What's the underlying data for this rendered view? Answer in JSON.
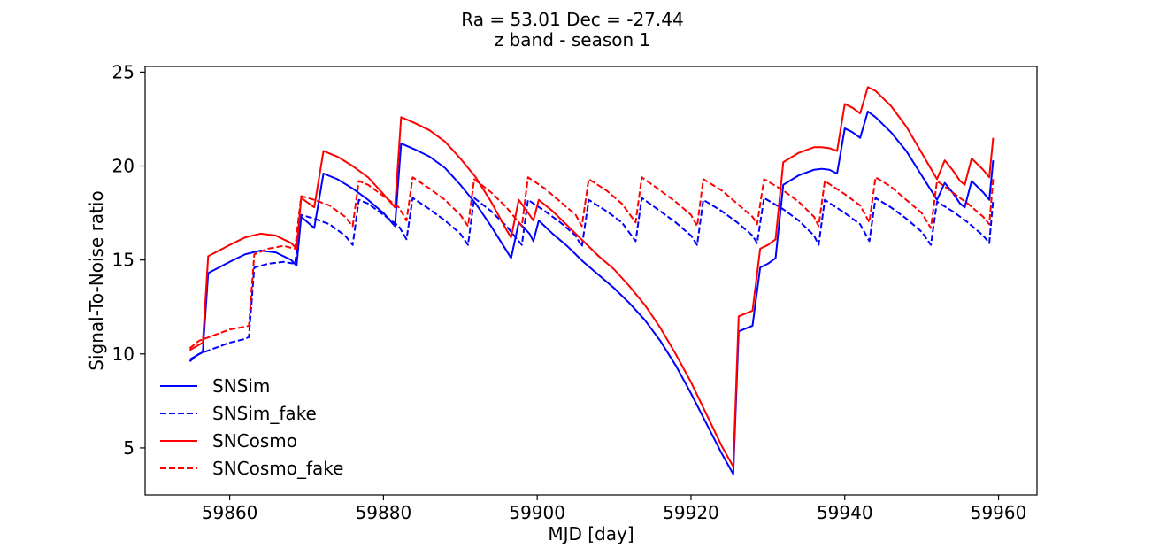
{
  "chart_data": {
    "type": "line",
    "title": "Ra = 53.01 Dec = -27.44",
    "subtitle": "z band - season 1",
    "xlabel": "MJD [day]",
    "ylabel": "Signal-To-Noise ratio",
    "xlim": [
      59849,
      59965
    ],
    "ylim": [
      2.5,
      25.3
    ],
    "xticks": [
      59860,
      59880,
      59900,
      59920,
      59940,
      59960
    ],
    "yticks": [
      5,
      10,
      15,
      20,
      25
    ],
    "grid": false,
    "legend_position": "lower-left",
    "series": [
      {
        "name": "SNSim",
        "color": "#0000ff",
        "dash": "solid",
        "points": [
          [
            59854.8,
            9.7
          ],
          [
            59856.5,
            10.1
          ],
          [
            59857.2,
            14.3
          ],
          [
            59860,
            14.9
          ],
          [
            59862,
            15.3
          ],
          [
            59864,
            15.5
          ],
          [
            59866,
            15.4
          ],
          [
            59868,
            15.0
          ],
          [
            59868.7,
            14.7
          ],
          [
            59869.3,
            17.3
          ],
          [
            59871,
            16.7
          ],
          [
            59872.2,
            19.6
          ],
          [
            59874,
            19.3
          ],
          [
            59876,
            18.8
          ],
          [
            59878,
            18.2
          ],
          [
            59880,
            17.5
          ],
          [
            59881.5,
            16.8
          ],
          [
            59882.3,
            21.2
          ],
          [
            59884,
            20.9
          ],
          [
            59886,
            20.5
          ],
          [
            59888,
            19.9
          ],
          [
            59890,
            19.0
          ],
          [
            59892,
            18.0
          ],
          [
            59894,
            16.8
          ],
          [
            59896,
            15.5
          ],
          [
            59896.6,
            15.1
          ],
          [
            59897.6,
            17.0
          ],
          [
            59899,
            16.4
          ],
          [
            59899.5,
            16.0
          ],
          [
            59900.2,
            17.1
          ],
          [
            59902,
            16.4
          ],
          [
            59904,
            15.7
          ],
          [
            59906,
            14.9
          ],
          [
            59908,
            14.2
          ],
          [
            59910,
            13.5
          ],
          [
            59912,
            12.7
          ],
          [
            59914,
            11.8
          ],
          [
            59916,
            10.7
          ],
          [
            59918,
            9.4
          ],
          [
            59920,
            7.9
          ],
          [
            59922,
            6.3
          ],
          [
            59924,
            4.7
          ],
          [
            59925.5,
            3.6
          ],
          [
            59926.2,
            11.2
          ],
          [
            59928,
            11.5
          ],
          [
            59929,
            14.6
          ],
          [
            59930,
            14.8
          ],
          [
            59931,
            15.1
          ],
          [
            59932,
            19.0
          ],
          [
            59934,
            19.5
          ],
          [
            59936,
            19.8
          ],
          [
            59937,
            19.85
          ],
          [
            59938,
            19.8
          ],
          [
            59939,
            19.6
          ],
          [
            59940,
            22.0
          ],
          [
            59941,
            21.8
          ],
          [
            59942,
            21.5
          ],
          [
            59943,
            22.9
          ],
          [
            59944,
            22.6
          ],
          [
            59946,
            21.8
          ],
          [
            59948,
            20.8
          ],
          [
            59950,
            19.5
          ],
          [
            59952,
            18.2
          ],
          [
            59953,
            19.1
          ],
          [
            59954,
            18.6
          ],
          [
            59955,
            18.0
          ],
          [
            59955.6,
            17.8
          ],
          [
            59956.5,
            19.2
          ],
          [
            59958,
            18.6
          ],
          [
            59958.8,
            18.2
          ],
          [
            59959.3,
            20.3
          ]
        ]
      },
      {
        "name": "SNSim_fake",
        "color": "#0000ff",
        "dash": "dashed",
        "points": [
          [
            59854.8,
            9.6
          ],
          [
            59856,
            10.0
          ],
          [
            59858,
            10.3
          ],
          [
            59860,
            10.6
          ],
          [
            59862,
            10.8
          ],
          [
            59862.5,
            10.9
          ],
          [
            59863.2,
            14.6
          ],
          [
            59865,
            14.8
          ],
          [
            59867,
            14.9
          ],
          [
            59868.5,
            14.8
          ],
          [
            59869.3,
            17.4
          ],
          [
            59871,
            17.2
          ],
          [
            59873,
            16.9
          ],
          [
            59875,
            16.3
          ],
          [
            59876,
            15.8
          ],
          [
            59876.8,
            18.2
          ],
          [
            59878,
            18.0
          ],
          [
            59880,
            17.4
          ],
          [
            59882,
            16.8
          ],
          [
            59883,
            16.1
          ],
          [
            59883.8,
            18.3
          ],
          [
            59886,
            17.7
          ],
          [
            59888,
            17.1
          ],
          [
            59890,
            16.4
          ],
          [
            59891,
            15.8
          ],
          [
            59891.8,
            18.3
          ],
          [
            59894,
            17.6
          ],
          [
            59896,
            16.8
          ],
          [
            59898,
            15.8
          ],
          [
            59898.8,
            18.2
          ],
          [
            59901,
            17.6
          ],
          [
            59903,
            17.0
          ],
          [
            59905,
            16.3
          ],
          [
            59905.8,
            15.7
          ],
          [
            59906.7,
            18.2
          ],
          [
            59909,
            17.6
          ],
          [
            59911,
            17.0
          ],
          [
            59912.8,
            16.0
          ],
          [
            59913.6,
            18.3
          ],
          [
            59916,
            17.6
          ],
          [
            59918,
            17.0
          ],
          [
            59920,
            16.3
          ],
          [
            59920.8,
            15.8
          ],
          [
            59921.6,
            18.2
          ],
          [
            59924,
            17.6
          ],
          [
            59926,
            17.0
          ],
          [
            59928,
            16.3
          ],
          [
            59928.6,
            15.9
          ],
          [
            59929.5,
            18.3
          ],
          [
            59932,
            17.7
          ],
          [
            59934,
            17.1
          ],
          [
            59936,
            16.3
          ],
          [
            59936.6,
            15.8
          ],
          [
            59937.4,
            18.2
          ],
          [
            59940,
            17.5
          ],
          [
            59942,
            16.9
          ],
          [
            59943.2,
            16.0
          ],
          [
            59944,
            18.3
          ],
          [
            59946,
            17.8
          ],
          [
            59948,
            17.2
          ],
          [
            59950,
            16.5
          ],
          [
            59951.2,
            15.8
          ],
          [
            59952,
            18.1
          ],
          [
            59954,
            17.6
          ],
          [
            59956,
            17.0
          ],
          [
            59958,
            16.3
          ],
          [
            59958.8,
            15.9
          ],
          [
            59959.3,
            18.2
          ]
        ]
      },
      {
        "name": "SNCosmo",
        "color": "#ff0000",
        "dash": "solid",
        "points": [
          [
            59854.8,
            10.2
          ],
          [
            59856.5,
            10.6
          ],
          [
            59857.2,
            15.2
          ],
          [
            59860,
            15.8
          ],
          [
            59862,
            16.2
          ],
          [
            59864,
            16.4
          ],
          [
            59866,
            16.3
          ],
          [
            59868,
            15.9
          ],
          [
            59868.7,
            15.6
          ],
          [
            59869.3,
            18.3
          ],
          [
            59871,
            17.8
          ],
          [
            59872.2,
            20.8
          ],
          [
            59874,
            20.5
          ],
          [
            59876,
            20.0
          ],
          [
            59878,
            19.4
          ],
          [
            59880,
            18.5
          ],
          [
            59881.5,
            17.8
          ],
          [
            59882.3,
            22.6
          ],
          [
            59884,
            22.3
          ],
          [
            59886,
            21.9
          ],
          [
            59888,
            21.3
          ],
          [
            59890,
            20.4
          ],
          [
            59892,
            19.4
          ],
          [
            59894,
            18.1
          ],
          [
            59896,
            16.6
          ],
          [
            59896.6,
            16.2
          ],
          [
            59897.6,
            18.2
          ],
          [
            59899,
            17.4
          ],
          [
            59899.5,
            17.1
          ],
          [
            59900.2,
            18.2
          ],
          [
            59902,
            17.6
          ],
          [
            59904,
            16.8
          ],
          [
            59906,
            16.0
          ],
          [
            59908,
            15.2
          ],
          [
            59910,
            14.5
          ],
          [
            59912,
            13.6
          ],
          [
            59914,
            12.6
          ],
          [
            59916,
            11.4
          ],
          [
            59918,
            10.0
          ],
          [
            59920,
            8.5
          ],
          [
            59922,
            6.8
          ],
          [
            59924,
            5.1
          ],
          [
            59925.5,
            4.0
          ],
          [
            59926.2,
            12.0
          ],
          [
            59928,
            12.3
          ],
          [
            59929,
            15.6
          ],
          [
            59930,
            15.8
          ],
          [
            59931,
            16.1
          ],
          [
            59932,
            20.2
          ],
          [
            59934,
            20.7
          ],
          [
            59936,
            21.0
          ],
          [
            59937,
            21.0
          ],
          [
            59938,
            20.95
          ],
          [
            59939,
            20.8
          ],
          [
            59940,
            23.3
          ],
          [
            59941,
            23.1
          ],
          [
            59942,
            22.8
          ],
          [
            59943,
            24.2
          ],
          [
            59944,
            24.0
          ],
          [
            59946,
            23.2
          ],
          [
            59948,
            22.1
          ],
          [
            59950,
            20.7
          ],
          [
            59952,
            19.3
          ],
          [
            59953,
            20.3
          ],
          [
            59954,
            19.8
          ],
          [
            59955,
            19.2
          ],
          [
            59955.6,
            19.0
          ],
          [
            59956.5,
            20.4
          ],
          [
            59958,
            19.8
          ],
          [
            59958.8,
            19.4
          ],
          [
            59959.3,
            21.5
          ]
        ]
      },
      {
        "name": "SNCosmo_fake",
        "color": "#ff0000",
        "dash": "dashed",
        "points": [
          [
            59854.8,
            10.3
          ],
          [
            59856,
            10.7
          ],
          [
            59858,
            11.0
          ],
          [
            59860,
            11.3
          ],
          [
            59862,
            11.45
          ],
          [
            59862.5,
            11.5
          ],
          [
            59863.2,
            15.3
          ],
          [
            59865,
            15.6
          ],
          [
            59867,
            15.75
          ],
          [
            59868.5,
            15.6
          ],
          [
            59869.3,
            18.4
          ],
          [
            59871,
            18.2
          ],
          [
            59873,
            17.9
          ],
          [
            59875,
            17.3
          ],
          [
            59876,
            16.8
          ],
          [
            59876.8,
            19.2
          ],
          [
            59878,
            19.0
          ],
          [
            59880,
            18.4
          ],
          [
            59882,
            17.8
          ],
          [
            59883,
            17.1
          ],
          [
            59883.8,
            19.4
          ],
          [
            59886,
            18.8
          ],
          [
            59888,
            18.2
          ],
          [
            59890,
            17.4
          ],
          [
            59891,
            16.8
          ],
          [
            59891.8,
            19.3
          ],
          [
            59894,
            18.6
          ],
          [
            59896,
            17.8
          ],
          [
            59898,
            16.8
          ],
          [
            59898.8,
            19.4
          ],
          [
            59901,
            18.8
          ],
          [
            59903,
            18.1
          ],
          [
            59905,
            17.4
          ],
          [
            59905.8,
            16.8
          ],
          [
            59906.7,
            19.3
          ],
          [
            59909,
            18.7
          ],
          [
            59911,
            18.0
          ],
          [
            59912.8,
            17.0
          ],
          [
            59913.6,
            19.4
          ],
          [
            59916,
            18.7
          ],
          [
            59918,
            18.1
          ],
          [
            59920,
            17.4
          ],
          [
            59920.8,
            16.8
          ],
          [
            59921.6,
            19.3
          ],
          [
            59924,
            18.7
          ],
          [
            59926,
            18.0
          ],
          [
            59928,
            17.3
          ],
          [
            59928.6,
            16.9
          ],
          [
            59929.5,
            19.3
          ],
          [
            59932,
            18.7
          ],
          [
            59934,
            18.1
          ],
          [
            59936,
            17.3
          ],
          [
            59936.6,
            16.8
          ],
          [
            59937.4,
            19.2
          ],
          [
            59940,
            18.5
          ],
          [
            59942,
            17.9
          ],
          [
            59943.2,
            17.0
          ],
          [
            59944,
            19.4
          ],
          [
            59946,
            18.9
          ],
          [
            59948,
            18.2
          ],
          [
            59950,
            17.5
          ],
          [
            59951.2,
            16.7
          ],
          [
            59952,
            19.2
          ],
          [
            59954,
            18.6
          ],
          [
            59956,
            18.0
          ],
          [
            59958,
            17.3
          ],
          [
            59958.8,
            16.9
          ],
          [
            59959.3,
            19.3
          ]
        ]
      }
    ]
  }
}
